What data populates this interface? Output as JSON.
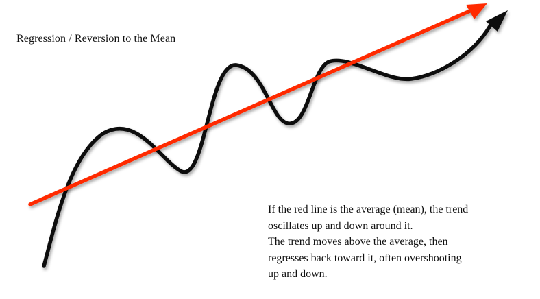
{
  "title": "Regression / Reversion to the Mean",
  "caption": {
    "lines": [
      "If the red line is the average (mean), the trend",
      "oscillates up and down around it.",
      "The trend moves above the average, then",
      "regresses back toward it, often overshooting",
      "up and down."
    ]
  },
  "colors": {
    "mean_line": "#ff2a00",
    "trend_line": "#111111",
    "background": "#ffffff"
  },
  "legend_semantics": {
    "mean_line": "average (mean)",
    "trend_line": "trend"
  }
}
